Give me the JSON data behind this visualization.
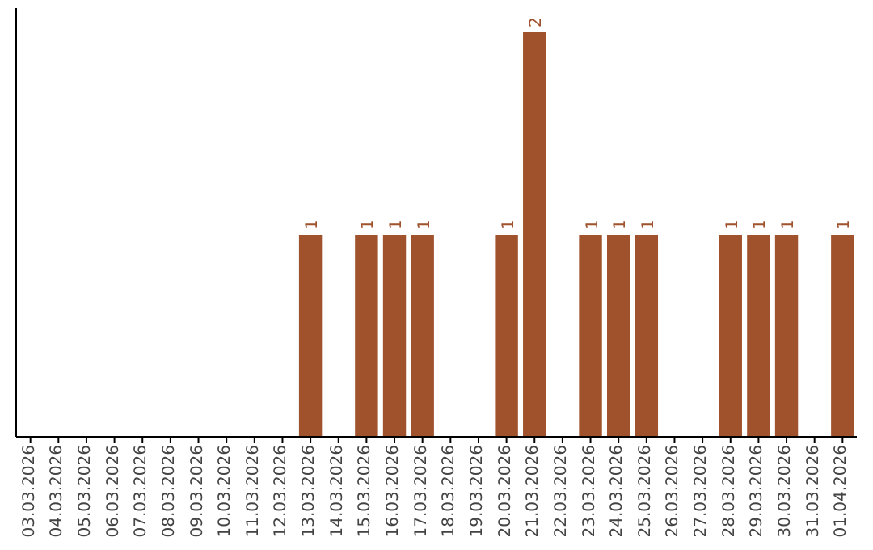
{
  "chart_data": {
    "type": "bar",
    "categories": [
      "03.03.2026",
      "04.03.2026",
      "05.03.2026",
      "06.03.2026",
      "07.03.2026",
      "08.03.2026",
      "09.03.2026",
      "10.03.2026",
      "11.03.2026",
      "12.03.2026",
      "13.03.2026",
      "14.03.2026",
      "15.03.2026",
      "16.03.2026",
      "17.03.2026",
      "18.03.2026",
      "19.03.2026",
      "20.03.2026",
      "21.03.2026",
      "22.03.2026",
      "23.03.2026",
      "24.03.2026",
      "25.03.2026",
      "26.03.2026",
      "27.03.2026",
      "28.03.2026",
      "29.03.2026",
      "30.03.2026",
      "31.03.2026",
      "01.04.2026"
    ],
    "values": [
      0,
      0,
      0,
      0,
      0,
      0,
      0,
      0,
      0,
      0,
      1,
      0,
      1,
      1,
      1,
      0,
      0,
      1,
      2,
      0,
      1,
      1,
      1,
      0,
      0,
      1,
      1,
      1,
      0,
      1
    ],
    "value_labels": [
      null,
      null,
      null,
      null,
      null,
      null,
      null,
      null,
      null,
      null,
      "1",
      null,
      "1",
      "1",
      "1",
      null,
      null,
      "1",
      "2",
      null,
      "1",
      "1",
      "1",
      null,
      null,
      "1",
      "1",
      "1",
      null,
      "1"
    ],
    "color": "#a0522d"
  }
}
